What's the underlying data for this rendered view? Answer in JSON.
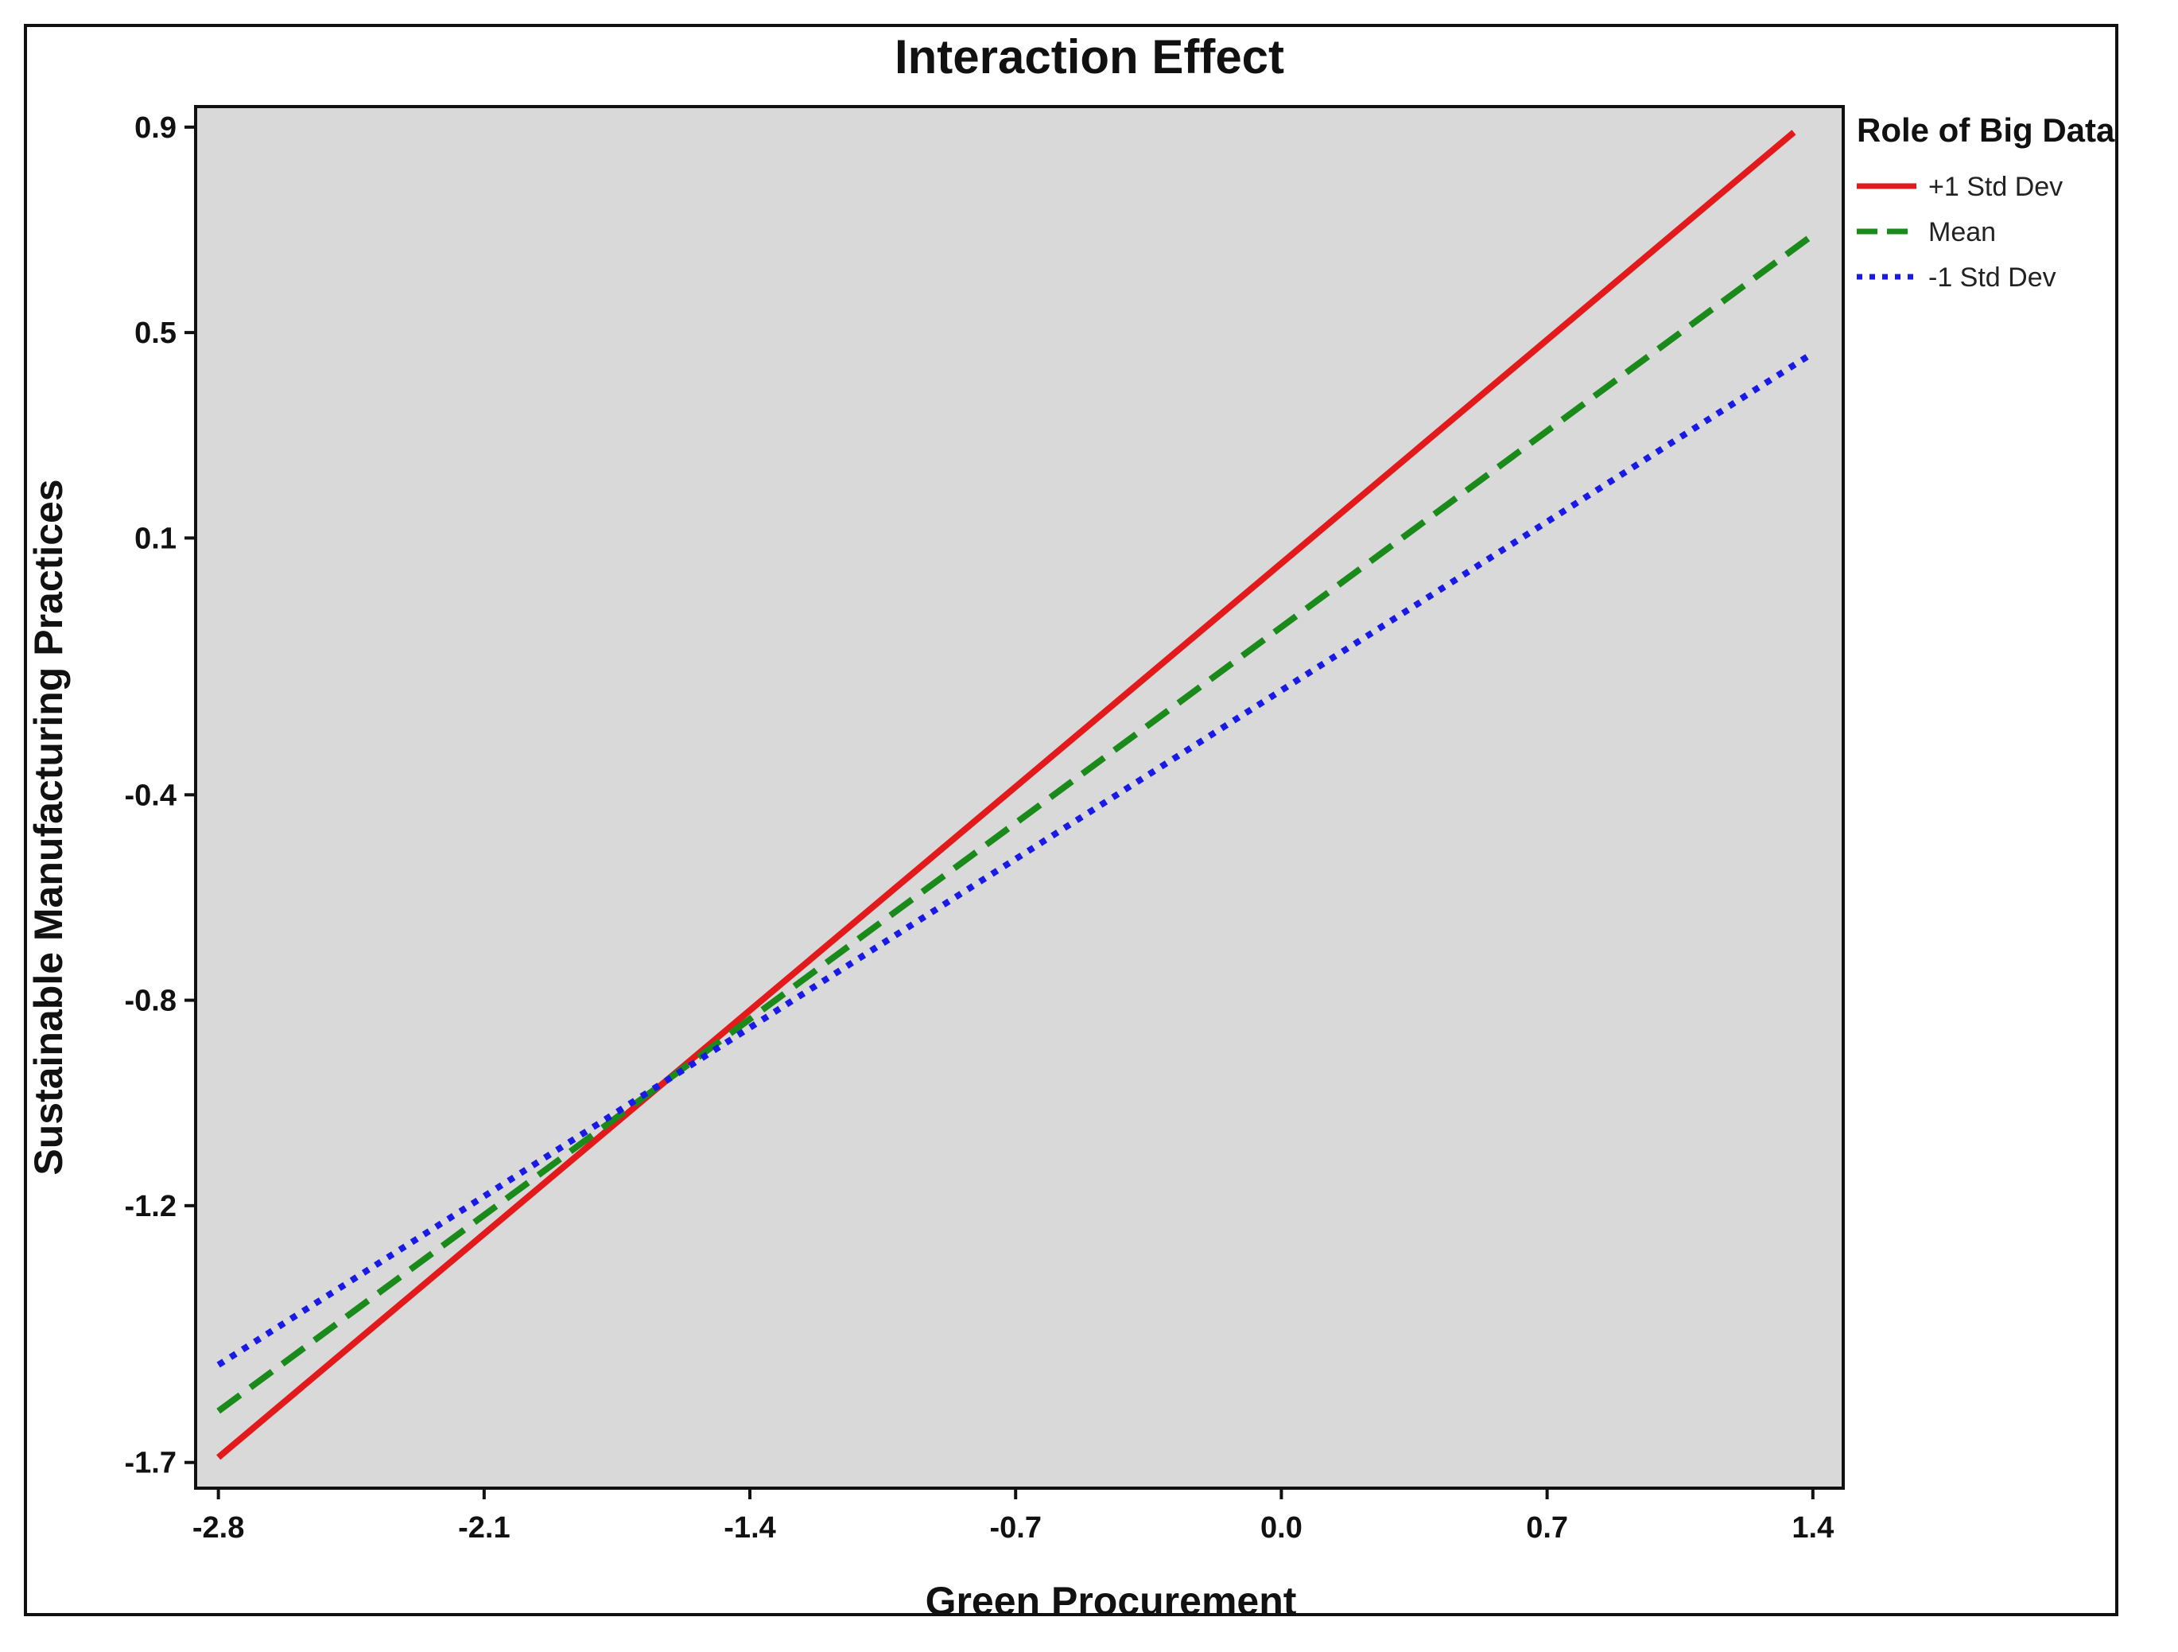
{
  "chart_data": {
    "type": "line",
    "title": "Interaction Effect",
    "xlabel": "Green Procurement",
    "ylabel": "Sustainable Manufacturing Practices",
    "xlim": [
      -2.86,
      1.48
    ],
    "ylim": [
      -1.75,
      0.94
    ],
    "x_ticks": [
      "-2.8",
      "-2.1",
      "-1.4",
      "-0.7",
      "0.0",
      "0.7",
      "1.4"
    ],
    "x_tick_values": [
      -2.8,
      -2.1,
      -1.4,
      -0.7,
      0.0,
      0.7,
      1.4
    ],
    "y_ticks": [
      "0.9",
      "0.5",
      "0.1",
      "-0.4",
      "-0.8",
      "-1.2",
      "-1.7"
    ],
    "y_tick_values": [
      0.9,
      0.5,
      0.1,
      -0.4,
      -0.8,
      -1.2,
      -1.7
    ],
    "legend": {
      "title": "Role of Big Data",
      "placement": "right"
    },
    "series": [
      {
        "name": "+1 Std Dev",
        "color": "#e31a1c",
        "style": "solid",
        "x": [
          -2.8,
          1.35
        ],
        "y": [
          -1.69,
          0.89
        ]
      },
      {
        "name": "Mean",
        "color": "#1a8a1a",
        "style": "dashed",
        "x": [
          -2.8,
          1.4
        ],
        "y": [
          -1.6,
          0.69
        ]
      },
      {
        "name": "-1 Std Dev",
        "color": "#1a1ae6",
        "style": "dotted",
        "x": [
          -2.8,
          1.4
        ],
        "y": [
          -1.51,
          0.46
        ]
      }
    ],
    "plot_background": "#d9d9d9",
    "grid": false
  }
}
